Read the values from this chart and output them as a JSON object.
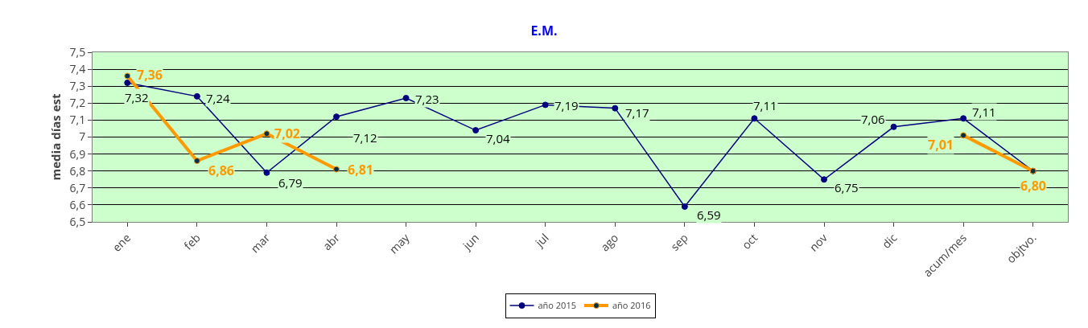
{
  "chart_data": {
    "type": "line",
    "title": "E.M.",
    "ylabel": "media días est",
    "categories": [
      "ene",
      "feb",
      "mar",
      "abr",
      "may",
      "jun",
      "jul",
      "ago",
      "sep",
      "oct",
      "nov",
      "dic",
      "acum/mes",
      "objtvo."
    ],
    "series": [
      {
        "name": "año 2015",
        "color": "#000080",
        "values": [
          7.32,
          7.24,
          6.79,
          7.12,
          7.23,
          7.04,
          7.19,
          7.17,
          6.59,
          7.11,
          6.75,
          7.06,
          7.11,
          6.8
        ],
        "value_labels": [
          "7,32",
          "7,24",
          "6,79",
          "7,12",
          "7,23",
          "7,04",
          "7,19",
          "7,17",
          "6,59",
          "7,11",
          "6,75",
          "7,06",
          "7,11",
          null
        ]
      },
      {
        "name": "año 2016",
        "color": "#ff9900",
        "values": [
          7.36,
          6.86,
          7.02,
          6.81,
          null,
          null,
          null,
          null,
          null,
          null,
          null,
          null,
          7.01,
          6.8
        ],
        "value_labels": [
          "7,36",
          "6,86",
          "7,02",
          "6,81",
          null,
          null,
          null,
          null,
          null,
          null,
          null,
          null,
          "7,01",
          "6,80"
        ]
      }
    ],
    "ylim": [
      6.5,
      7.5
    ],
    "yticks": [
      {
        "value": 6.5,
        "label": "6,5"
      },
      {
        "value": 6.6,
        "label": "6,6"
      },
      {
        "value": 6.7,
        "label": "6,7"
      },
      {
        "value": 6.8,
        "label": "6,8"
      },
      {
        "value": 6.9,
        "label": "6,9"
      },
      {
        "value": 7,
        "label": "7"
      },
      {
        "value": 7.1,
        "label": "7,1"
      },
      {
        "value": 7.2,
        "label": "7,2"
      },
      {
        "value": 7.3,
        "label": "7,3"
      },
      {
        "value": 7.4,
        "label": "7,4"
      },
      {
        "value": 7.5,
        "label": "7,5"
      }
    ],
    "grid": "y",
    "legend": "bottom",
    "marker": "circle",
    "line_style": "solid"
  }
}
